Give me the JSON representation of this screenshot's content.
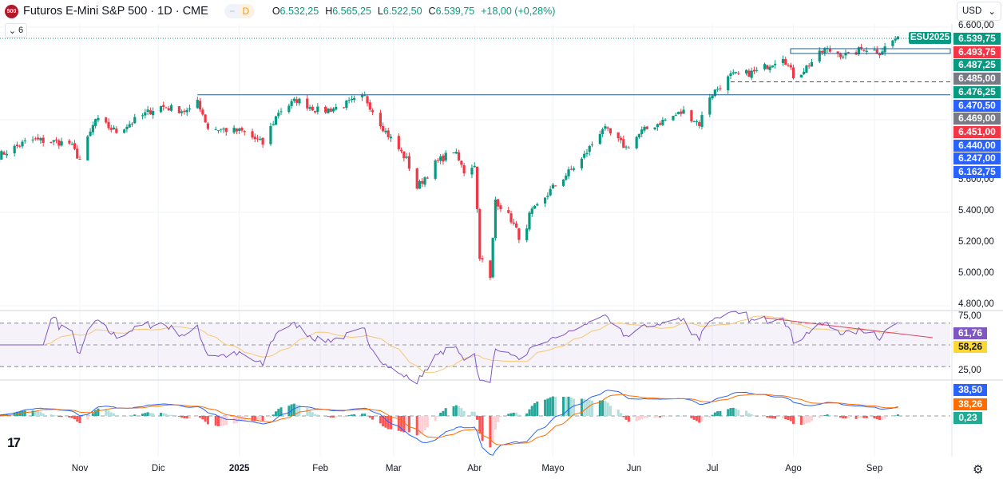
{
  "header": {
    "symbol_badge": "500",
    "title": "Futuros E-Mini S&P 500 · 1D · CME",
    "pill_minus": "−",
    "pill_d": "D",
    "ohlc": [
      {
        "l": "O",
        "v": "6.532,25"
      },
      {
        "l": "H",
        "v": "6.565,25"
      },
      {
        "l": "L",
        "v": "6.522,50"
      },
      {
        "l": "C",
        "v": "6.539,75"
      },
      {
        "l": "",
        "v": "+18,00 (+0,28%)"
      }
    ],
    "collapse_count": "6"
  },
  "currency": {
    "label": "USD"
  },
  "symbol_tag": "ESU2025",
  "price_axis": {
    "ticks": [
      "6.600,00",
      "5.600,00",
      "5.400,00",
      "5.200,00",
      "5.000,00",
      "4.800,00"
    ],
    "tags": [
      {
        "v": "6.539,75",
        "c": "#089981"
      },
      {
        "v": "6.493,75",
        "c": "#f23645"
      },
      {
        "v": "6.487,25",
        "c": "#089981"
      },
      {
        "v": "6.485,00",
        "c": "#787b86"
      },
      {
        "v": "6.476,25",
        "c": "#089981"
      },
      {
        "v": "6.470,50",
        "c": "#2962ff"
      },
      {
        "v": "6.469,00",
        "c": "#787b86"
      },
      {
        "v": "6.451,00",
        "c": "#f23645"
      },
      {
        "v": "6.440,00",
        "c": "#2962ff"
      },
      {
        "v": "6.247,00",
        "c": "#2962ff"
      },
      {
        "v": "6.162,75",
        "c": "#2962ff"
      }
    ]
  },
  "rsi_axis": {
    "ticks": [
      "75,00",
      "25,00"
    ],
    "tags": [
      {
        "v": "61,76",
        "c": "#7e57c2"
      },
      {
        "v": "58,26",
        "c": "#fdd835",
        "t": "#131722"
      }
    ]
  },
  "macd_axis": {
    "tags": [
      {
        "v": "38,50",
        "c": "#2962ff"
      },
      {
        "v": "38,26",
        "c": "#ff6d00"
      },
      {
        "v": "0,23",
        "c": "#22ab94"
      }
    ]
  },
  "time_axis": [
    {
      "label": "Nov",
      "date": "2024-11-01"
    },
    {
      "label": "Dic",
      "date": "2024-12-01"
    },
    {
      "label": "2025",
      "date": "2025-01-01"
    },
    {
      "label": "Feb",
      "date": "2025-02-01"
    },
    {
      "label": "Mar",
      "date": "2025-03-01"
    },
    {
      "label": "Abr",
      "date": "2025-04-01"
    },
    {
      "label": "Mayo",
      "date": "2025-05-01"
    },
    {
      "label": "Jun",
      "date": "2025-06-01"
    },
    {
      "label": "Jul",
      "date": "2025-07-01"
    },
    {
      "label": "Ago",
      "date": "2025-08-01"
    },
    {
      "label": "Sep",
      "date": "2025-09-01"
    }
  ],
  "colors": {
    "up": "#089981",
    "down": "#f23645",
    "rsi": "#7e57c2",
    "rsi_ma": "#fdd835",
    "macd": "#2962ff",
    "signal": "#ff6d00"
  },
  "chart_data": {
    "type": "candlestick",
    "ylim": [
      4800,
      6600
    ],
    "rsi_levels": [
      70,
      50,
      30
    ],
    "rsi_ylim": [
      25,
      75
    ],
    "path": [
      [
        "2024-10-01",
        5770
      ],
      [
        "2024-10-13",
        5873
      ],
      [
        "2024-10-28",
        5850
      ],
      [
        "2024-11-01",
        5744
      ],
      [
        "2024-11-07",
        6002
      ],
      [
        "2024-11-15",
        5925
      ],
      [
        "2024-12-01",
        6090
      ],
      [
        "2024-12-13",
        6054
      ],
      [
        "2024-12-16",
        6130
      ],
      [
        "2024-12-20",
        5950
      ],
      [
        "2025-01-02",
        5925
      ],
      [
        "2025-01-10",
        5847
      ],
      [
        "2025-01-16",
        6054
      ],
      [
        "2025-01-23",
        6130
      ],
      [
        "2025-02-01",
        6054
      ],
      [
        "2025-02-07",
        6080
      ],
      [
        "2025-02-18",
        6147
      ],
      [
        "2025-02-26",
        5925
      ],
      [
        "2025-03-06",
        5744
      ],
      [
        "2025-03-10",
        5563
      ],
      [
        "2025-03-17",
        5718
      ],
      [
        "2025-03-24",
        5806
      ],
      [
        "2025-03-28",
        5667
      ],
      [
        "2025-04-01",
        5718
      ],
      [
        "2025-04-03",
        5125
      ],
      [
        "2025-04-07",
        4970
      ],
      [
        "2025-04-09",
        5486
      ],
      [
        "2025-04-15",
        5357
      ],
      [
        "2025-04-20",
        5177
      ],
      [
        "2025-04-22",
        5383
      ],
      [
        "2025-05-01",
        5563
      ],
      [
        "2025-05-12",
        5744
      ],
      [
        "2025-05-20",
        5950
      ],
      [
        "2025-05-29",
        5821
      ],
      [
        "2025-06-04",
        5925
      ],
      [
        "2025-06-13",
        6002
      ],
      [
        "2025-06-20",
        6054
      ],
      [
        "2025-06-26",
        5976
      ],
      [
        "2025-06-30",
        6156
      ],
      [
        "2025-07-08",
        6285
      ],
      [
        "2025-07-18",
        6311
      ],
      [
        "2025-07-28",
        6414
      ],
      [
        "2025-08-01",
        6285
      ],
      [
        "2025-08-04",
        6311
      ],
      [
        "2025-08-13",
        6456
      ],
      [
        "2025-08-22",
        6414
      ],
      [
        "2025-08-28",
        6466
      ],
      [
        "2025-09-03",
        6440
      ],
      [
        "2025-09-10",
        6540
      ]
    ],
    "hlines": [
      {
        "price": 6162.75,
        "from": "2024-12-16",
        "style": "solid"
      },
      {
        "price": 6247,
        "from": "2025-07-08",
        "style": "dashed"
      }
    ]
  }
}
